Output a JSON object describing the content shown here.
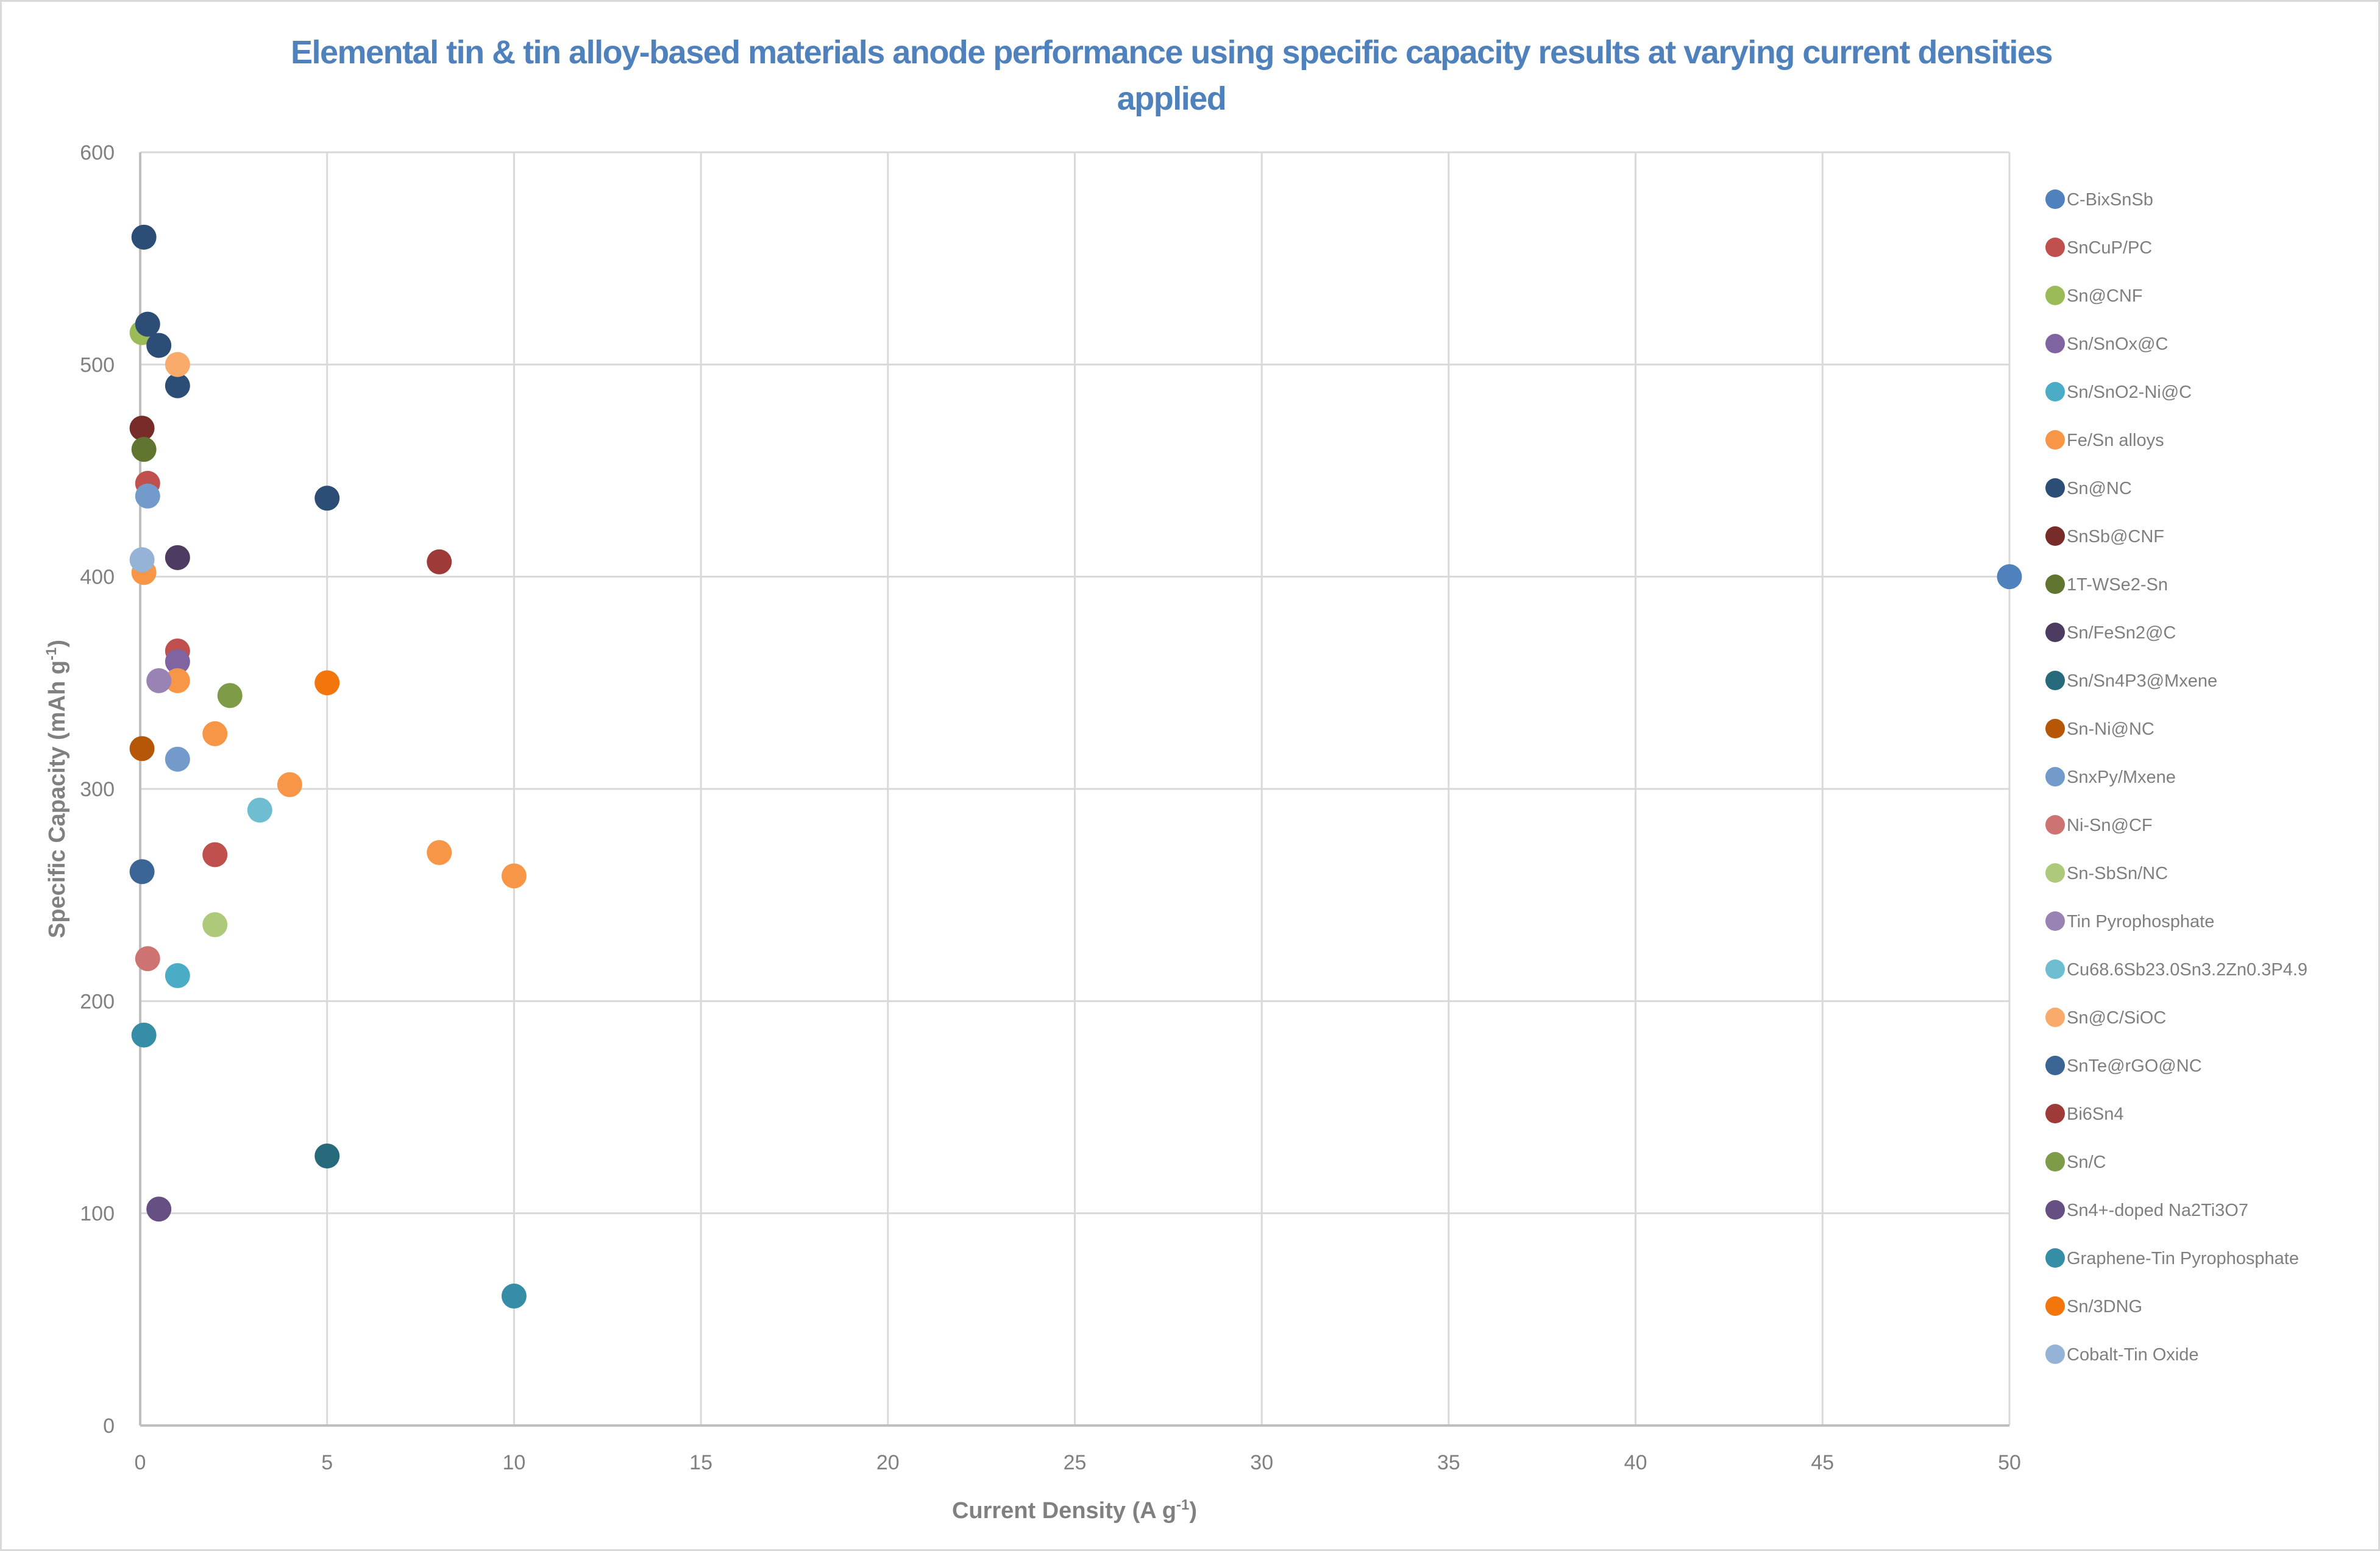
{
  "chart_data": {
    "type": "scatter",
    "title": "Elemental tin & tin alloy-based materials anode performance using specific capacity results at varying current densities applied",
    "xlabel": "Current Density (A g-1)",
    "xlabel_main": "Current Density (A g",
    "xlabel_sup": "-1",
    "xlabel_end": ")",
    "ylabel": "Specific Capacity (mAh g-1)",
    "ylabel_main": "Specific Capacity (mAh g",
    "ylabel_sup": "-1",
    "ylabel_end": ")",
    "xlim": [
      0,
      50
    ],
    "ylim": [
      0,
      600
    ],
    "xticks": [
      "0",
      "5",
      "10",
      "15",
      "20",
      "25",
      "30",
      "35",
      "40",
      "45",
      "50"
    ],
    "yticks": [
      "0",
      "100",
      "200",
      "300",
      "400",
      "500",
      "600"
    ],
    "grid": true,
    "legend_position": "right",
    "series": [
      {
        "name": "C-BixSnSb",
        "color": "#4f81bd",
        "points": [
          [
            50,
            400
          ]
        ]
      },
      {
        "name": "SnCuP/PC",
        "color": "#c0504d",
        "points": [
          [
            0.2,
            444
          ],
          [
            1,
            365
          ],
          [
            2,
            269
          ]
        ]
      },
      {
        "name": "Sn@CNF",
        "color": "#9bbb59",
        "points": [
          [
            0.05,
            515
          ]
        ]
      },
      {
        "name": "Sn/SnOx@C",
        "color": "#8064a2",
        "points": [
          [
            1,
            360
          ]
        ]
      },
      {
        "name": "Sn/SnO2-Ni@C",
        "color": "#4bacc6",
        "points": [
          [
            1,
            212
          ]
        ]
      },
      {
        "name": "Fe/Sn alloys",
        "color": "#f79646",
        "points": [
          [
            0.1,
            402
          ],
          [
            1,
            351
          ],
          [
            2,
            326
          ],
          [
            4,
            302
          ],
          [
            8,
            270
          ],
          [
            10,
            259
          ]
        ]
      },
      {
        "name": "Sn@NC",
        "color": "#2c4d75",
        "points": [
          [
            0.1,
            560
          ],
          [
            0.2,
            519
          ],
          [
            0.5,
            509
          ],
          [
            1,
            490
          ],
          [
            5,
            437
          ]
        ]
      },
      {
        "name": "SnSb@CNF",
        "color": "#772c2a",
        "points": [
          [
            0.05,
            470
          ]
        ]
      },
      {
        "name": "1T-WSe2-Sn",
        "color": "#5f7530",
        "points": [
          [
            0.1,
            460
          ]
        ]
      },
      {
        "name": "Sn/FeSn2@C",
        "color": "#4d3b62",
        "points": [
          [
            1,
            409
          ]
        ]
      },
      {
        "name": "Sn/Sn4P3@Mxene",
        "color": "#276a7c",
        "points": [
          [
            5,
            127
          ]
        ]
      },
      {
        "name": "Sn-Ni@NC",
        "color": "#b65708",
        "points": [
          [
            0.05,
            319
          ]
        ]
      },
      {
        "name": "SnxPy/Mxene",
        "color": "#729aca",
        "points": [
          [
            0.2,
            438
          ],
          [
            1,
            314
          ]
        ]
      },
      {
        "name": "Ni-Sn@CF",
        "color": "#cd7371",
        "points": [
          [
            0.2,
            220
          ]
        ]
      },
      {
        "name": "Sn-SbSn/NC",
        "color": "#afc97a",
        "points": [
          [
            2,
            236
          ]
        ]
      },
      {
        "name": "Tin Pyrophosphate",
        "color": "#9983b5",
        "points": [
          [
            0.5,
            351
          ]
        ]
      },
      {
        "name": "Cu68.6Sb23.0Sn3.2Zn0.3P4.9",
        "color": "#6fbdd1",
        "points": [
          [
            3.2,
            290
          ]
        ]
      },
      {
        "name": "Sn@C/SiOC",
        "color": "#f9ab6b",
        "points": [
          [
            1,
            500
          ]
        ]
      },
      {
        "name": "SnTe@rGO@NC",
        "color": "#3a6595",
        "points": [
          [
            0.05,
            261
          ]
        ]
      },
      {
        "name": "Bi6Sn4",
        "color": "#9e3b39",
        "points": [
          [
            8,
            407
          ]
        ]
      },
      {
        "name": "Sn/C",
        "color": "#7e9c47",
        "points": [
          [
            2.4,
            344
          ]
        ]
      },
      {
        "name": "Sn4+-doped Na2Ti3O7",
        "color": "#664f83",
        "points": [
          [
            0.5,
            102
          ]
        ]
      },
      {
        "name": "Graphene-Tin Pyrophosphate",
        "color": "#358ea6",
        "points": [
          [
            0.1,
            184
          ],
          [
            10,
            61
          ]
        ]
      },
      {
        "name": "Sn/3DNG",
        "color": "#f3760d",
        "points": [
          [
            5,
            350
          ]
        ]
      },
      {
        "name": "Cobalt-Tin Oxide",
        "color": "#95b3d7",
        "points": [
          [
            0.05,
            408
          ]
        ]
      }
    ]
  },
  "colors": {
    "title": "#4f81bd",
    "gridline": "#d9d9d9",
    "axis": "#bfbfbf",
    "text": "#808080"
  }
}
